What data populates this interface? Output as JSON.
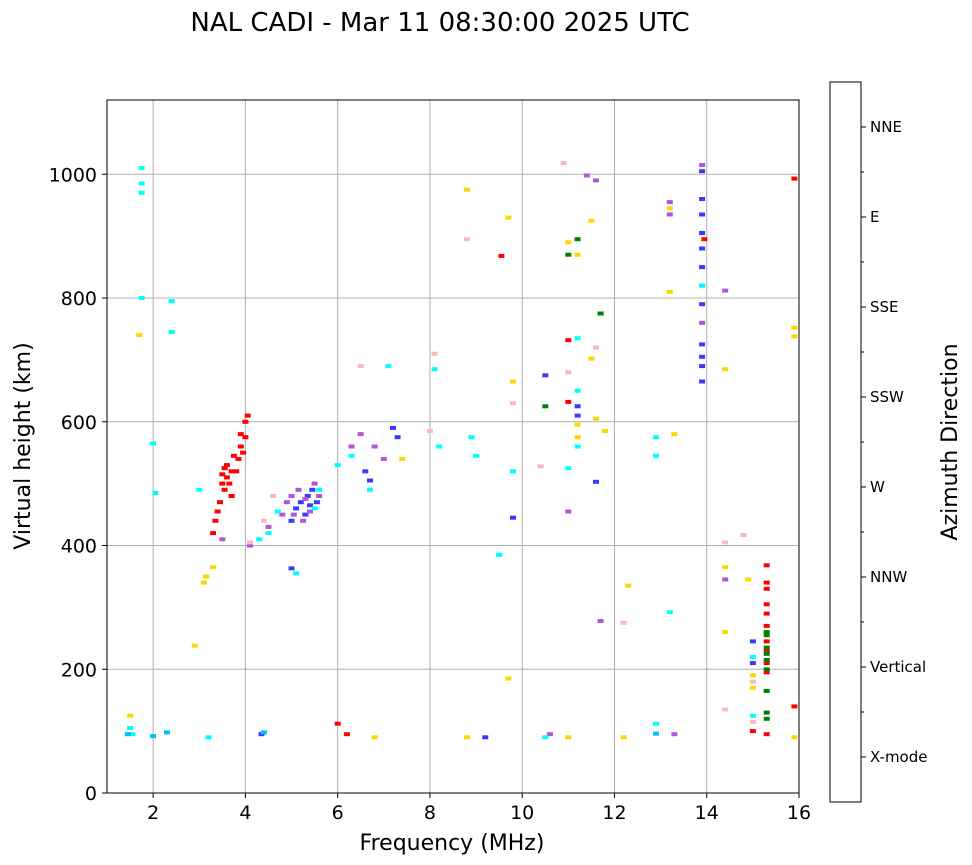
{
  "chart_data": {
    "type": "scatter",
    "title": "NAL CADI - Mar 11 08:30:00 2025 UTC",
    "xlabel": "Frequency (MHz)",
    "ylabel": "Virtual height (km)",
    "xlim": [
      1.0,
      16.0
    ],
    "ylim": [
      0,
      1120
    ],
    "xticks": [
      2,
      4,
      6,
      8,
      10,
      12,
      14,
      16
    ],
    "xtick_labels": [
      "2",
      "4",
      "6",
      "8",
      "10",
      "12",
      "14",
      "16"
    ],
    "yticks": [
      0,
      200,
      400,
      600,
      800,
      1000
    ],
    "ytick_labels": [
      "0",
      "200",
      "400",
      "600",
      "800",
      "1000"
    ],
    "grid": true,
    "colorbar": {
      "title": "Azimuth Direction",
      "categories": [
        "X-mode",
        "Vertical",
        "NNW",
        "W",
        "SSW",
        "SSE",
        "E",
        "NNE"
      ],
      "colors": [
        "#008000",
        "#ff0000",
        "#3a3aff",
        "#b455d6",
        "#ffb6c1",
        "#ffd700",
        "#00ffff",
        "#00bfff"
      ]
    },
    "series": [
      {
        "name": "Vertical",
        "points": [
          [
            3.3,
            420
          ],
          [
            3.35,
            440
          ],
          [
            3.4,
            455
          ],
          [
            3.5,
            500
          ],
          [
            3.5,
            515
          ],
          [
            3.55,
            525
          ],
          [
            3.6,
            510
          ],
          [
            3.6,
            530
          ],
          [
            3.65,
            500
          ],
          [
            3.7,
            520
          ],
          [
            3.75,
            545
          ],
          [
            3.8,
            520
          ],
          [
            3.85,
            540
          ],
          [
            3.9,
            560
          ],
          [
            3.9,
            580
          ],
          [
            3.95,
            550
          ],
          [
            4.0,
            575
          ],
          [
            4.0,
            600
          ],
          [
            4.05,
            610
          ],
          [
            3.7,
            480
          ],
          [
            3.55,
            490
          ],
          [
            3.45,
            470
          ],
          [
            6.0,
            112
          ],
          [
            6.2,
            95
          ],
          [
            9.55,
            868
          ],
          [
            11.0,
            632
          ],
          [
            11.0,
            732
          ],
          [
            13.95,
            895
          ],
          [
            15.0,
            100
          ],
          [
            15.3,
            368
          ],
          [
            15.3,
            340
          ],
          [
            15.3,
            330
          ],
          [
            15.3,
            305
          ],
          [
            15.3,
            290
          ],
          [
            15.3,
            270
          ],
          [
            15.3,
            245
          ],
          [
            15.3,
            230
          ],
          [
            15.3,
            210
          ],
          [
            15.3,
            195
          ],
          [
            15.3,
            95
          ],
          [
            15.9,
            993
          ],
          [
            15.9,
            140
          ]
        ]
      },
      {
        "name": "NNW",
        "points": [
          [
            4.35,
            95
          ],
          [
            5.0,
            440
          ],
          [
            5.1,
            460
          ],
          [
            5.2,
            470
          ],
          [
            5.3,
            450
          ],
          [
            5.35,
            480
          ],
          [
            5.4,
            465
          ],
          [
            5.45,
            490
          ],
          [
            5.55,
            470
          ],
          [
            5.0,
            363
          ],
          [
            6.6,
            520
          ],
          [
            6.7,
            505
          ],
          [
            7.2,
            590
          ],
          [
            7.3,
            575
          ],
          [
            9.2,
            90
          ],
          [
            9.8,
            445
          ],
          [
            10.5,
            675
          ],
          [
            11.2,
            625
          ],
          [
            11.2,
            610
          ],
          [
            11.6,
            503
          ],
          [
            13.9,
            1005
          ],
          [
            13.9,
            960
          ],
          [
            13.9,
            935
          ],
          [
            13.9,
            905
          ],
          [
            13.9,
            880
          ],
          [
            13.9,
            850
          ],
          [
            13.9,
            820
          ],
          [
            13.9,
            790
          ],
          [
            13.9,
            725
          ],
          [
            13.9,
            705
          ],
          [
            13.9,
            690
          ],
          [
            13.9,
            665
          ],
          [
            15.0,
            245
          ],
          [
            15.0,
            210
          ]
        ]
      },
      {
        "name": "W",
        "points": [
          [
            3.5,
            410
          ],
          [
            4.1,
            400
          ],
          [
            4.5,
            430
          ],
          [
            4.8,
            450
          ],
          [
            4.9,
            470
          ],
          [
            5.0,
            480
          ],
          [
            5.05,
            450
          ],
          [
            5.15,
            490
          ],
          [
            5.25,
            440
          ],
          [
            5.3,
            475
          ],
          [
            5.4,
            455
          ],
          [
            5.5,
            500
          ],
          [
            5.6,
            480
          ],
          [
            6.3,
            560
          ],
          [
            6.5,
            580
          ],
          [
            6.8,
            560
          ],
          [
            7.0,
            540
          ],
          [
            10.6,
            95
          ],
          [
            11.0,
            455
          ],
          [
            11.7,
            278
          ],
          [
            13.2,
            955
          ],
          [
            13.2,
            935
          ],
          [
            13.3,
            95
          ],
          [
            13.9,
            1015
          ],
          [
            13.9,
            760
          ],
          [
            14.4,
            812
          ],
          [
            14.4,
            345
          ],
          [
            11.6,
            990
          ],
          [
            11.4,
            998
          ]
        ]
      },
      {
        "name": "SSW",
        "points": [
          [
            4.1,
            405
          ],
          [
            4.4,
            440
          ],
          [
            4.6,
            480
          ],
          [
            6.5,
            690
          ],
          [
            8.0,
            585
          ],
          [
            8.1,
            710
          ],
          [
            8.8,
            895
          ],
          [
            9.8,
            630
          ],
          [
            10.4,
            528
          ],
          [
            10.9,
            1018
          ],
          [
            11.0,
            680
          ],
          [
            11.6,
            720
          ],
          [
            12.2,
            275
          ],
          [
            14.4,
            405
          ],
          [
            14.4,
            135
          ],
          [
            14.8,
            417
          ],
          [
            15.0,
            115
          ],
          [
            15.0,
            180
          ]
        ]
      },
      {
        "name": "SSE",
        "points": [
          [
            1.5,
            125
          ],
          [
            1.7,
            740
          ],
          [
            2.9,
            238
          ],
          [
            3.1,
            340
          ],
          [
            3.15,
            350
          ],
          [
            3.3,
            365
          ],
          [
            6.8,
            90
          ],
          [
            7.4,
            540
          ],
          [
            8.8,
            975
          ],
          [
            8.8,
            90
          ],
          [
            9.7,
            930
          ],
          [
            9.7,
            185
          ],
          [
            9.8,
            665
          ],
          [
            11.0,
            890
          ],
          [
            11.0,
            90
          ],
          [
            11.2,
            870
          ],
          [
            11.2,
            595
          ],
          [
            11.2,
            575
          ],
          [
            11.5,
            925
          ],
          [
            11.5,
            702
          ],
          [
            11.6,
            605
          ],
          [
            11.8,
            585
          ],
          [
            12.2,
            90
          ],
          [
            12.3,
            335
          ],
          [
            13.2,
            945
          ],
          [
            13.2,
            810
          ],
          [
            13.3,
            580
          ],
          [
            14.4,
            685
          ],
          [
            14.4,
            365
          ],
          [
            14.4,
            260
          ],
          [
            14.9,
            345
          ],
          [
            15.0,
            190
          ],
          [
            15.0,
            170
          ],
          [
            15.9,
            752
          ],
          [
            15.9,
            738
          ],
          [
            15.9,
            90
          ]
        ]
      },
      {
        "name": "E",
        "points": [
          [
            1.5,
            105
          ],
          [
            1.55,
            95
          ],
          [
            1.75,
            1010
          ],
          [
            1.75,
            985
          ],
          [
            1.75,
            970
          ],
          [
            1.75,
            800
          ],
          [
            2.0,
            565
          ],
          [
            2.05,
            485
          ],
          [
            2.4,
            795
          ],
          [
            2.4,
            745
          ],
          [
            3.0,
            490
          ],
          [
            3.2,
            90
          ],
          [
            4.3,
            410
          ],
          [
            4.5,
            420
          ],
          [
            4.7,
            455
          ],
          [
            5.1,
            355
          ],
          [
            5.5,
            460
          ],
          [
            5.6,
            490
          ],
          [
            6.0,
            530
          ],
          [
            6.3,
            545
          ],
          [
            6.7,
            490
          ],
          [
            7.1,
            690
          ],
          [
            8.1,
            685
          ],
          [
            8.2,
            560
          ],
          [
            8.9,
            575
          ],
          [
            9.0,
            545
          ],
          [
            9.5,
            385
          ],
          [
            9.8,
            520
          ],
          [
            10.5,
            90
          ],
          [
            11.0,
            525
          ],
          [
            11.2,
            735
          ],
          [
            11.2,
            650
          ],
          [
            11.2,
            560
          ],
          [
            12.9,
            575
          ],
          [
            12.9,
            545
          ],
          [
            13.2,
            292
          ],
          [
            12.9,
            112
          ],
          [
            13.9,
            820
          ],
          [
            15.0,
            220
          ],
          [
            15.0,
            125
          ]
        ]
      },
      {
        "name": "NNE",
        "points": [
          [
            1.45,
            95
          ],
          [
            2.0,
            92
          ],
          [
            2.3,
            98
          ],
          [
            4.4,
            98
          ],
          [
            12.9,
            96
          ]
        ]
      },
      {
        "name": "X-mode",
        "points": [
          [
            10.5,
            625
          ],
          [
            11.0,
            870
          ],
          [
            11.2,
            895
          ],
          [
            11.7,
            775
          ],
          [
            15.3,
            260
          ],
          [
            15.3,
            255
          ],
          [
            15.3,
            235
          ],
          [
            15.3,
            225
          ],
          [
            15.3,
            215
          ],
          [
            15.3,
            200
          ],
          [
            15.3,
            165
          ],
          [
            15.3,
            130
          ],
          [
            15.3,
            120
          ]
        ]
      }
    ]
  }
}
